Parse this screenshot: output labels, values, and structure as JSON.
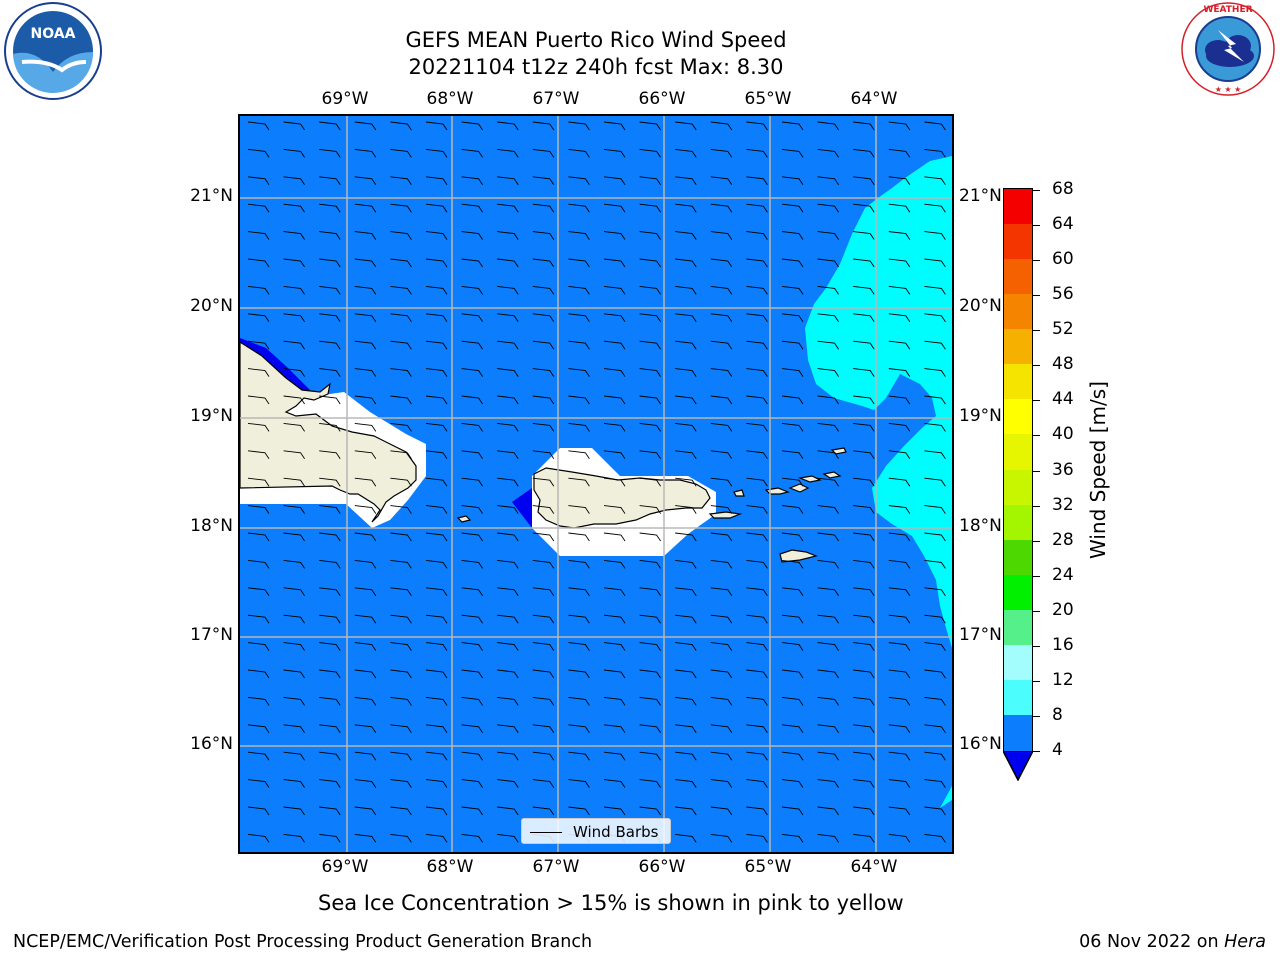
{
  "header": {
    "title_line1": "GEFS MEAN Puerto Rico Wind Speed",
    "title_line2": "20221104 t12z 240h fcst   Max: 8.30"
  },
  "logos": {
    "left": "NOAA",
    "left_icon": "noaa-logo-icon",
    "right": "NATIONAL WEATHER SERVICE",
    "right_icon": "nws-logo-icon"
  },
  "map": {
    "lon_labels": [
      "69°W",
      "68°W",
      "67°W",
      "66°W",
      "65°W",
      "64°W"
    ],
    "lat_labels": [
      "21°N",
      "20°N",
      "19°N",
      "18°N",
      "17°N",
      "16°N"
    ],
    "colors": {
      "ocean_4_8": "#0b7dfd",
      "ocean_8_12": "#00fdfd",
      "below_4": "#0000f0",
      "land": "#efefdc",
      "grid": "#b8b8b8"
    },
    "legend_label": "Wind Barbs"
  },
  "colorbar": {
    "label": "Wind Speed [m/s]",
    "ticks": [
      "68",
      "64",
      "60",
      "56",
      "52",
      "48",
      "44",
      "40",
      "36",
      "32",
      "28",
      "24",
      "20",
      "16",
      "12",
      "8",
      "4"
    ],
    "colors": [
      "#f50000",
      "#f53500",
      "#f56000",
      "#f58500",
      "#f5b000",
      "#f5e300",
      "#ffff00",
      "#e6f500",
      "#c8f500",
      "#a4f500",
      "#4cd800",
      "#00f000",
      "#55f08a",
      "#a4fdfd",
      "#4cfdfd",
      "#00fdfd",
      "#0b7dfd"
    ],
    "under_color": "#0000f0"
  },
  "note": "Sea Ice Concentration > 15% is shown in pink to yellow",
  "footer": {
    "left": "NCEP/EMC/Verification Post Processing Product Generation Branch",
    "right_date": "06 Nov 2022 on ",
    "right_host": "Hera"
  }
}
